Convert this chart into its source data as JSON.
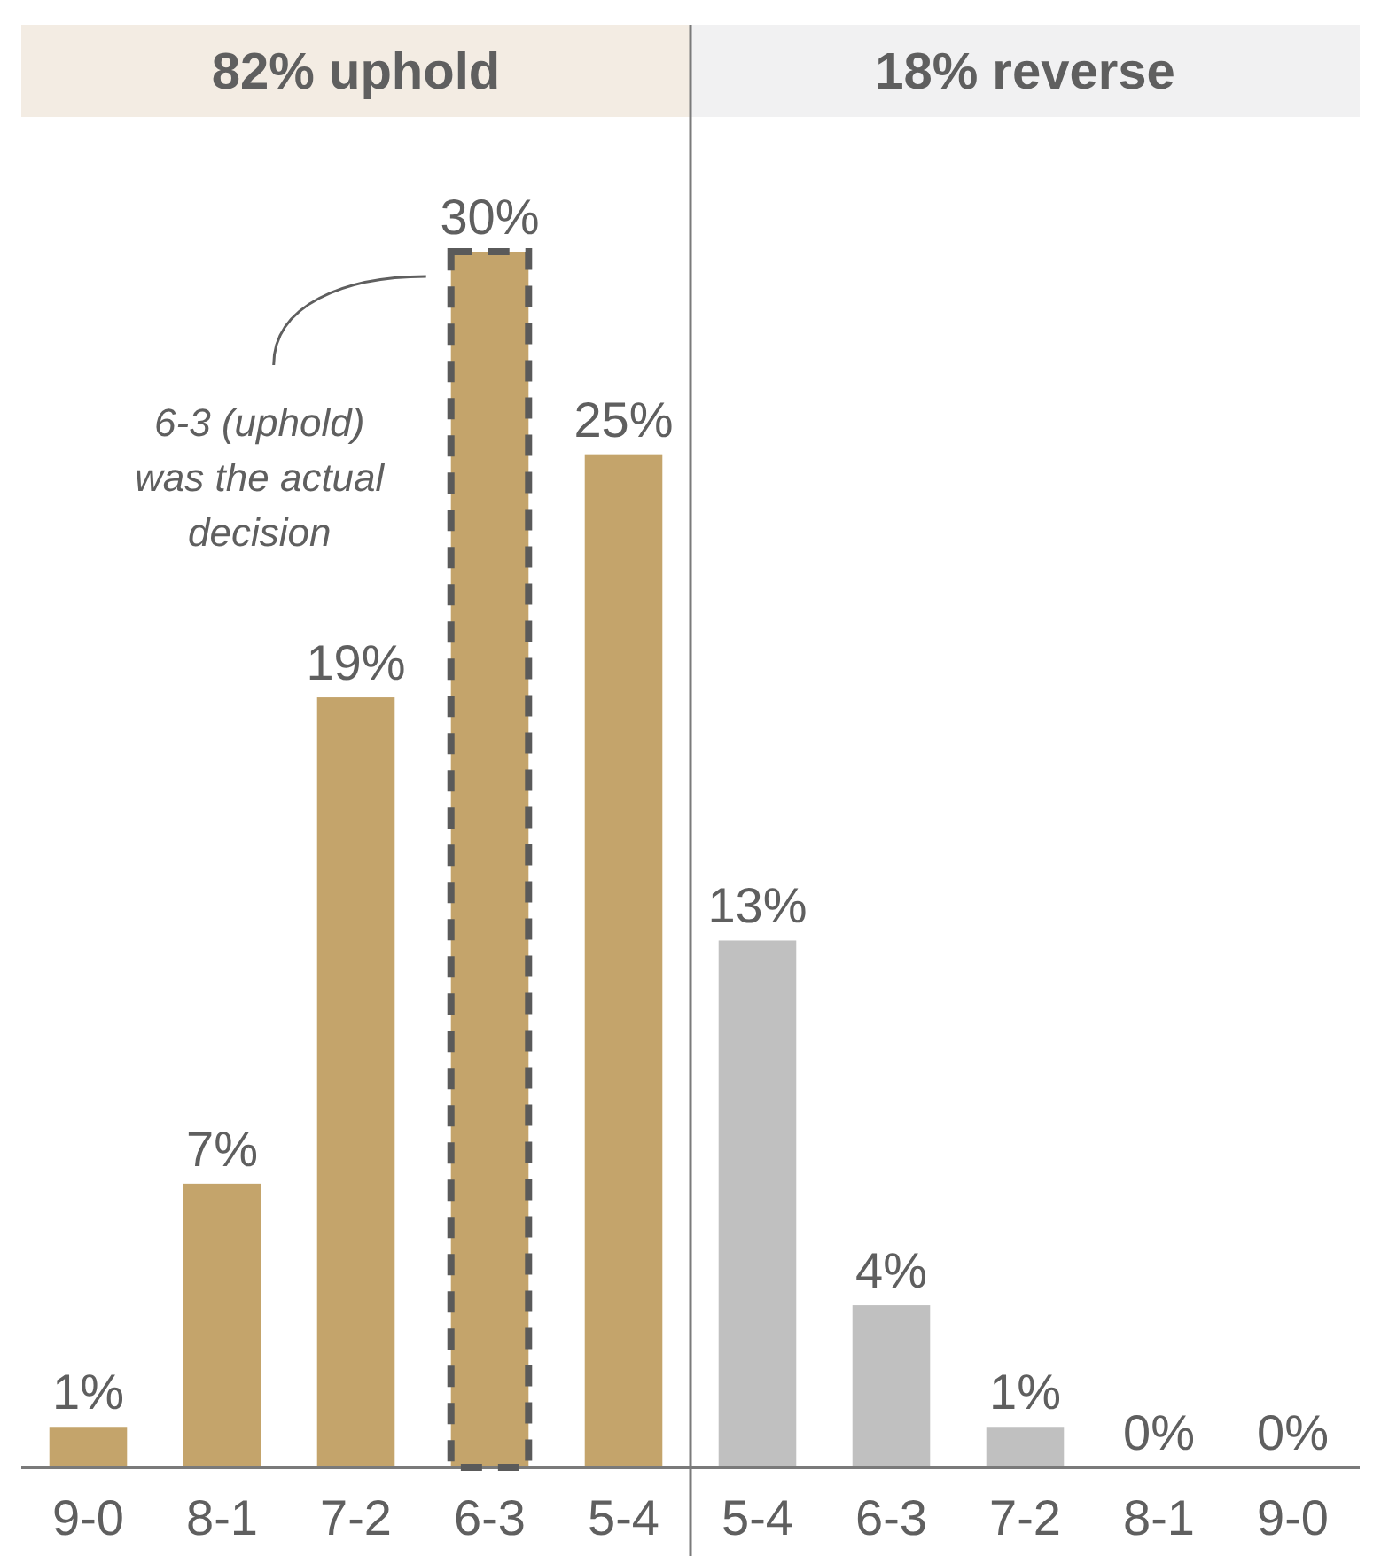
{
  "chart_data": {
    "type": "bar",
    "categories": [
      "9-0",
      "8-1",
      "7-2",
      "6-3",
      "5-4",
      "5-4",
      "6-3",
      "7-2",
      "8-1",
      "9-0"
    ],
    "values": [
      1,
      7,
      19,
      30,
      25,
      13,
      4,
      1,
      0,
      0
    ],
    "value_labels": [
      "1%",
      "7%",
      "19%",
      "30%",
      "25%",
      "13%",
      "4%",
      "1%",
      "0%",
      "0%"
    ],
    "colors": [
      "#c4a46b",
      "#c4a46b",
      "#c4a46b",
      "#c4a46b",
      "#c4a46b",
      "#c0c0c0",
      "#c0c0c0",
      "#c0c0c0",
      "#c0c0c0",
      "#c0c0c0"
    ],
    "annotations": [
      "82% uphold",
      "18% reverse",
      "6-3 (uphold)\nwas the actual\ndecision"
    ]
  }
}
